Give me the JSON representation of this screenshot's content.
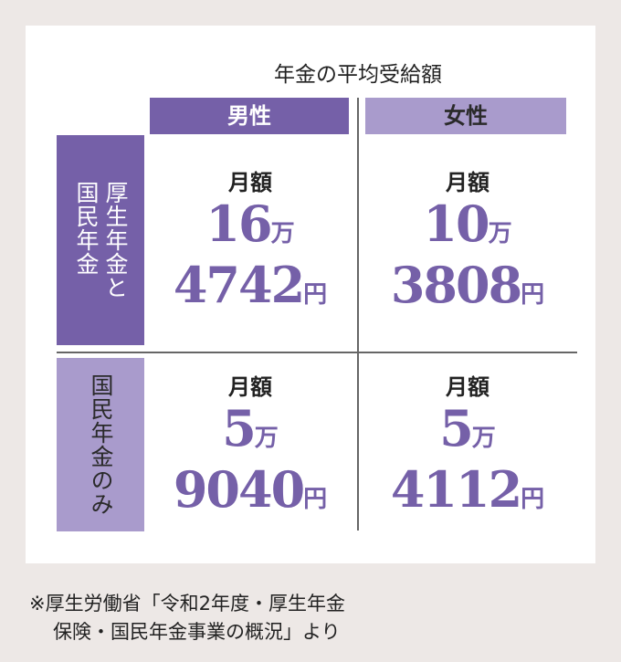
{
  "title": "年金の平均受給額",
  "columns": [
    "男性",
    "女性"
  ],
  "rows": [
    {
      "label_lines": [
        "厚生年金と",
        "国民年金"
      ]
    },
    {
      "label_lines": [
        "国民年金のみ"
      ]
    }
  ],
  "cells": [
    [
      {
        "label": "月額",
        "man": "16",
        "man_unit": "万",
        "yen": "4742",
        "yen_unit": "円"
      },
      {
        "label": "月額",
        "man": "10",
        "man_unit": "万",
        "yen": "3808",
        "yen_unit": "円"
      }
    ],
    [
      {
        "label": "月額",
        "man": "5",
        "man_unit": "万",
        "yen": "9040",
        "yen_unit": "円"
      },
      {
        "label": "月額",
        "man": "5",
        "man_unit": "万",
        "yen": "4112",
        "yen_unit": "円"
      }
    ]
  ],
  "note": [
    "※厚生労働省「令和2年度・厚生年金",
    "保険・国民年金事業の概況」より"
  ],
  "colors": {
    "dark_purple": "#7560a8",
    "light_purple": "#a99bcc",
    "background": "#ede8e6"
  }
}
